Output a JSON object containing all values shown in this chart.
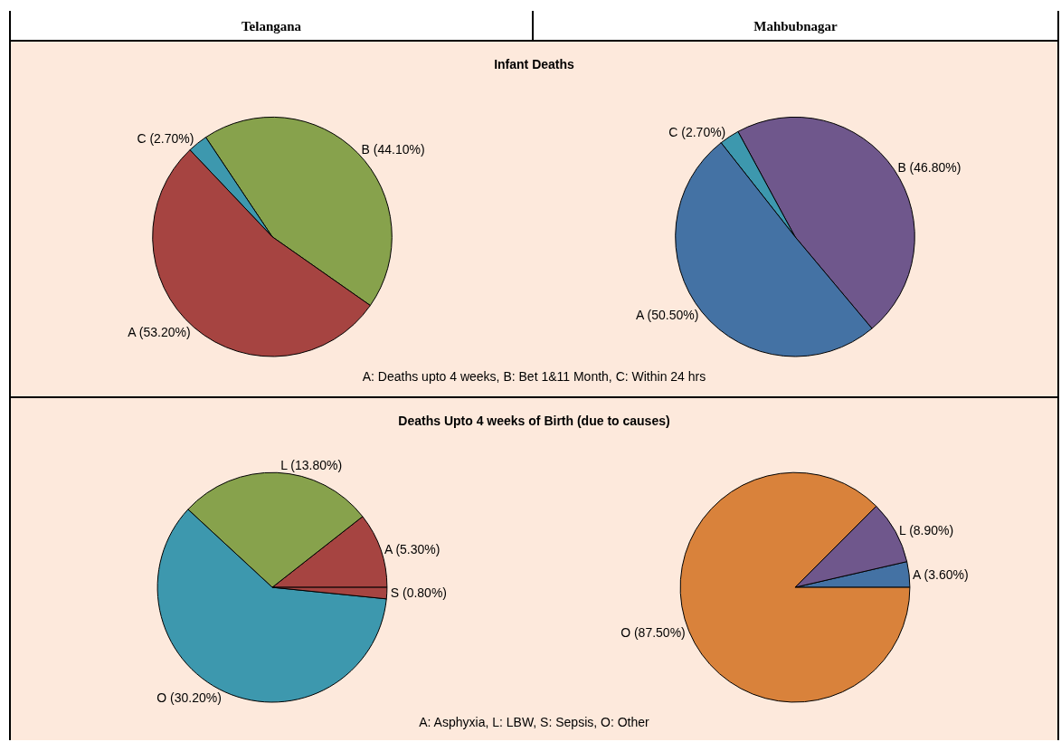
{
  "chart_data": [
    {
      "type": "pie",
      "title": "Telangana",
      "subtitle": "Infant Deaths",
      "categories": [
        "B (44.10%)",
        "C (2.70%)",
        "A (53.20%)"
      ],
      "values": [
        44.1,
        2.7,
        53.2
      ],
      "colors": [
        "#87a24c",
        "#3d98ae",
        "#a64441"
      ],
      "legend": false,
      "annotations": [
        "A: Deaths upto 4 weeks, B: Bet 1&11 Month, C: Within 24 hrs"
      ]
    },
    {
      "type": "pie",
      "title": "Mahbubnagar",
      "categories": [
        "B (46.80%)",
        "C (2.70%)",
        "A (50.50%)"
      ],
      "values": [
        46.8,
        2.7,
        50.5
      ],
      "colors": [
        "#6f578c",
        "#3d98ae",
        "#4472a4"
      ],
      "legend": false
    },
    {
      "type": "pie",
      "subtitle": "Deaths Upto 4 weeks of Birth (due to causes)",
      "categories": [
        "A (5.30%)",
        "L (13.80%)",
        "O (30.20%)",
        "S (0.80%)"
      ],
      "values": [
        10.58,
        27.54,
        60.28,
        1.6
      ],
      "colors": [
        "#a64441",
        "#87a24c",
        "#3d98ae",
        "#a64441"
      ],
      "legend": false,
      "annotations": [
        "A: Asphyxia, L: LBW, S: Sepsis, O: Other"
      ]
    },
    {
      "type": "pie",
      "categories": [
        "A (3.60%)",
        "L (8.90%)",
        "O (87.50%)"
      ],
      "values": [
        3.6,
        8.9,
        87.5
      ],
      "colors": [
        "#4472a4",
        "#6f578c",
        "#d9823b"
      ],
      "legend": false
    }
  ]
}
